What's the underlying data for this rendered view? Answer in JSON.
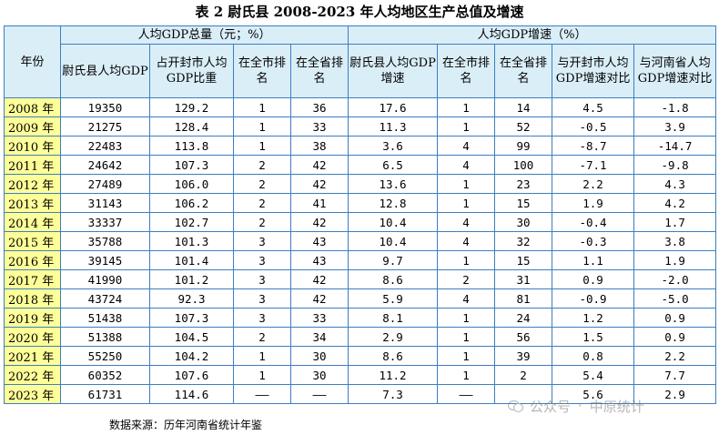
{
  "title": "表 2  尉氏县 2008-2023 年人均地区生产总值及增速",
  "headers": {
    "year": "年份",
    "group1": "人均GDP总量（元；%）",
    "group2": "人均GDP增速（%）",
    "cols": [
      "尉氏县人均GDP",
      "占开封市人均GDP比重",
      "在全市排名",
      "在全省排名",
      "尉氏县人均GDP增速",
      "在全市排名",
      "在全省排名",
      "与开封市人均GDP增速对比",
      "与河南省人均GDP增速对比"
    ]
  },
  "rows": [
    [
      "2008 年",
      "19350",
      "129.2",
      "1",
      "36",
      "17.6",
      "1",
      "14",
      "4.5",
      "-1.8"
    ],
    [
      "2009 年",
      "21275",
      "128.4",
      "1",
      "33",
      "11.3",
      "1",
      "52",
      "-0.5",
      "3.9"
    ],
    [
      "2010 年",
      "22483",
      "113.8",
      "1",
      "38",
      "3.6",
      "4",
      "99",
      "-8.7",
      "-14.7"
    ],
    [
      "2011 年",
      "24642",
      "107.3",
      "2",
      "42",
      "6.5",
      "4",
      "100",
      "-7.1",
      "-9.8"
    ],
    [
      "2012 年",
      "27489",
      "106.0",
      "2",
      "42",
      "13.6",
      "1",
      "23",
      "2.2",
      "4.3"
    ],
    [
      "2013 年",
      "31143",
      "106.2",
      "2",
      "41",
      "12.8",
      "1",
      "15",
      "1.9",
      "4.2"
    ],
    [
      "2014 年",
      "33337",
      "102.7",
      "2",
      "42",
      "10.4",
      "4",
      "30",
      "-0.4",
      "1.7"
    ],
    [
      "2015 年",
      "35788",
      "101.3",
      "3",
      "43",
      "10.4",
      "4",
      "32",
      "-0.3",
      "3.8"
    ],
    [
      "2016 年",
      "39145",
      "101.4",
      "3",
      "43",
      "9.7",
      "1",
      "15",
      "1.1",
      "1.9"
    ],
    [
      "2017 年",
      "41990",
      "101.2",
      "3",
      "42",
      "8.6",
      "2",
      "31",
      "0.9",
      "-2.0"
    ],
    [
      "2018 年",
      "43724",
      "92.3",
      "3",
      "42",
      "5.9",
      "4",
      "81",
      "-0.9",
      "-5.0"
    ],
    [
      "2019 年",
      "51438",
      "107.3",
      "3",
      "33",
      "8.1",
      "1",
      "24",
      "1.2",
      "0.9"
    ],
    [
      "2020 年",
      "51388",
      "104.5",
      "2",
      "34",
      "2.9",
      "1",
      "56",
      "1.5",
      "0.9"
    ],
    [
      "2021 年",
      "55250",
      "104.2",
      "1",
      "30",
      "8.6",
      "1",
      "39",
      "0.8",
      "2.2"
    ],
    [
      "2022 年",
      "60352",
      "107.6",
      "1",
      "30",
      "11.2",
      "1",
      "2",
      "5.4",
      "7.7"
    ],
    [
      "2023 年",
      "61731",
      "114.6",
      "——",
      "——",
      "7.3",
      "——",
      "",
      "5.6",
      "2.9"
    ]
  ],
  "source": "数据来源：历年河南省统计年鉴",
  "watermark": {
    "icon": "wechat-icon",
    "label": "公众号",
    "name": "中原统计"
  }
}
